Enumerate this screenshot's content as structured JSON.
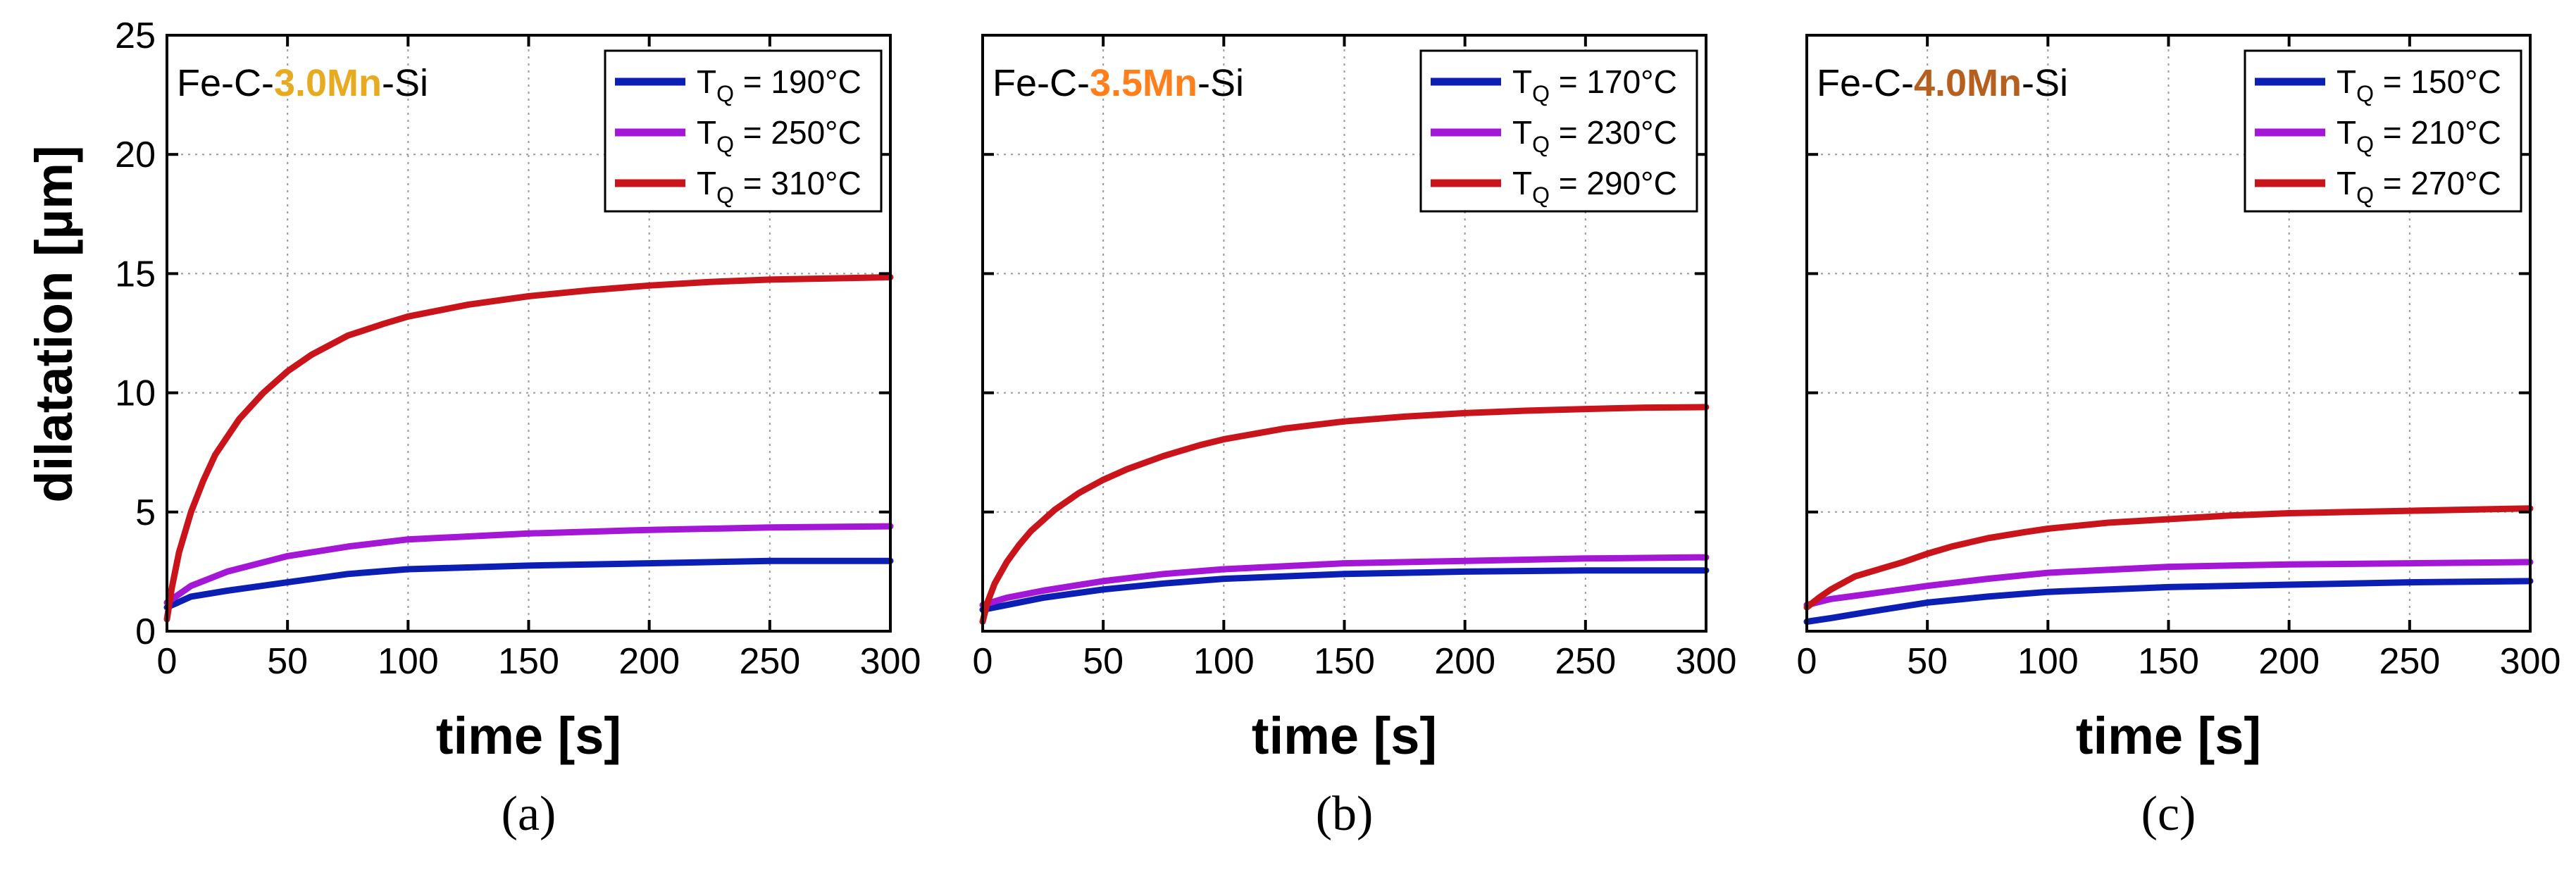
{
  "colors": {
    "blue": "#0c1fb5",
    "purple": "#a417d6",
    "red": "#c8141a",
    "mn30": "#e8aa1e",
    "mn35": "#ff7f1a",
    "mn40": "#b5601e"
  },
  "figure": {
    "ylabel": "dilatation [µm]"
  },
  "chart_data": [
    {
      "type": "line",
      "caption": "(a)",
      "title": {
        "prefix": "Fe-C-",
        "highlight": "3.0Mn",
        "suffix": "-Si",
        "highlight_color": "#e8aa1e"
      },
      "xlabel": "time [s]",
      "ylabel": "dilatation [µm]",
      "xlim": [
        0,
        300
      ],
      "ylim": [
        0,
        25
      ],
      "xticks": [
        0,
        50,
        100,
        150,
        200,
        250,
        300
      ],
      "yticks": [
        0,
        5,
        10,
        15,
        20,
        25
      ],
      "legend_position": "top-right",
      "series": [
        {
          "name": "TQ = 190°C",
          "label_main": "T",
          "label_sub": "Q",
          "label_rest": " = 190°C",
          "color": "#0c1fb5",
          "x": [
            0,
            10,
            25,
            50,
            75,
            100,
            150,
            200,
            250,
            300
          ],
          "y": [
            1.0,
            1.45,
            1.7,
            2.05,
            2.4,
            2.6,
            2.75,
            2.85,
            2.95,
            2.95
          ]
        },
        {
          "name": "TQ = 250°C",
          "label_main": "T",
          "label_sub": "Q",
          "label_rest": " = 250°C",
          "color": "#a417d6",
          "x": [
            0,
            10,
            25,
            50,
            75,
            100,
            150,
            200,
            250,
            300
          ],
          "y": [
            1.2,
            1.9,
            2.5,
            3.15,
            3.55,
            3.85,
            4.1,
            4.25,
            4.35,
            4.4
          ]
        },
        {
          "name": "TQ = 310°C",
          "label_main": "T",
          "label_sub": "Q",
          "label_rest": " = 310°C",
          "color": "#c8141a",
          "x": [
            0,
            2,
            5,
            10,
            15,
            20,
            30,
            40,
            50,
            60,
            75,
            90,
            100,
            125,
            150,
            175,
            200,
            225,
            250,
            275,
            300
          ],
          "y": [
            0.5,
            1.8,
            3.3,
            5.0,
            6.3,
            7.4,
            8.9,
            10.0,
            10.9,
            11.6,
            12.4,
            12.9,
            13.2,
            13.7,
            14.05,
            14.3,
            14.5,
            14.65,
            14.75,
            14.8,
            14.85
          ]
        }
      ]
    },
    {
      "type": "line",
      "caption": "(b)",
      "title": {
        "prefix": "Fe-C-",
        "highlight": "3.5Mn",
        "suffix": "-Si",
        "highlight_color": "#ff7f1a"
      },
      "xlabel": "time [s]",
      "ylabel": "dilatation [µm]",
      "xlim": [
        0,
        300
      ],
      "ylim": [
        0,
        25
      ],
      "xticks": [
        0,
        50,
        100,
        150,
        200,
        250,
        300
      ],
      "yticks": [
        0,
        5,
        10,
        15,
        20,
        25
      ],
      "legend_position": "top-right",
      "series": [
        {
          "name": "TQ = 170°C",
          "label_main": "T",
          "label_sub": "Q",
          "label_rest": " = 170°C",
          "color": "#0c1fb5",
          "x": [
            0,
            10,
            25,
            50,
            75,
            100,
            150,
            200,
            250,
            300
          ],
          "y": [
            0.9,
            1.1,
            1.4,
            1.75,
            2.0,
            2.2,
            2.4,
            2.5,
            2.55,
            2.55
          ]
        },
        {
          "name": "TQ = 230°C",
          "label_main": "T",
          "label_sub": "Q",
          "label_rest": " = 230°C",
          "color": "#a417d6",
          "x": [
            0,
            10,
            25,
            50,
            75,
            100,
            150,
            200,
            250,
            300
          ],
          "y": [
            1.1,
            1.4,
            1.7,
            2.1,
            2.4,
            2.6,
            2.85,
            2.95,
            3.05,
            3.1
          ]
        },
        {
          "name": "TQ = 290°C",
          "label_main": "T",
          "label_sub": "Q",
          "label_rest": " = 290°C",
          "color": "#c8141a",
          "x": [
            0,
            2,
            5,
            10,
            15,
            20,
            30,
            40,
            50,
            60,
            75,
            90,
            100,
            125,
            150,
            175,
            200,
            225,
            250,
            275,
            300
          ],
          "y": [
            0.4,
            1.2,
            2.0,
            2.9,
            3.6,
            4.2,
            5.1,
            5.8,
            6.35,
            6.8,
            7.35,
            7.8,
            8.05,
            8.5,
            8.8,
            9.0,
            9.15,
            9.25,
            9.32,
            9.38,
            9.4
          ]
        }
      ]
    },
    {
      "type": "line",
      "caption": "(c)",
      "title": {
        "prefix": "Fe-C-",
        "highlight": "4.0Mn",
        "suffix": "-Si",
        "highlight_color": "#b5601e"
      },
      "xlabel": "time [s]",
      "ylabel": "dilatation [µm]",
      "xlim": [
        0,
        300
      ],
      "ylim": [
        0,
        25
      ],
      "xticks": [
        0,
        50,
        100,
        150,
        200,
        250,
        300
      ],
      "yticks": [
        0,
        5,
        10,
        15,
        20,
        25
      ],
      "legend_position": "top-right",
      "series": [
        {
          "name": "TQ = 150°C",
          "label_main": "T",
          "label_sub": "Q",
          "label_rest": " = 150°C",
          "color": "#0c1fb5",
          "x": [
            0,
            10,
            25,
            50,
            75,
            100,
            150,
            200,
            250,
            300
          ],
          "y": [
            0.4,
            0.55,
            0.8,
            1.2,
            1.45,
            1.65,
            1.85,
            1.95,
            2.05,
            2.1
          ]
        },
        {
          "name": "TQ = 210°C",
          "label_main": "T",
          "label_sub": "Q",
          "label_rest": " = 210°C",
          "color": "#a417d6",
          "x": [
            0,
            10,
            25,
            50,
            75,
            100,
            150,
            200,
            250,
            300
          ],
          "y": [
            1.1,
            1.35,
            1.55,
            1.9,
            2.2,
            2.45,
            2.7,
            2.8,
            2.85,
            2.9
          ]
        },
        {
          "name": "TQ = 270°C",
          "label_main": "T",
          "label_sub": "Q",
          "label_rest": " = 270°C",
          "color": "#c8141a",
          "x": [
            0,
            5,
            10,
            20,
            30,
            40,
            50,
            60,
            75,
            90,
            100,
            125,
            150,
            175,
            200,
            225,
            250,
            275,
            300
          ],
          "y": [
            1.0,
            1.4,
            1.75,
            2.3,
            2.6,
            2.9,
            3.25,
            3.55,
            3.9,
            4.15,
            4.3,
            4.55,
            4.7,
            4.85,
            4.95,
            5.0,
            5.05,
            5.1,
            5.15
          ]
        }
      ]
    }
  ]
}
